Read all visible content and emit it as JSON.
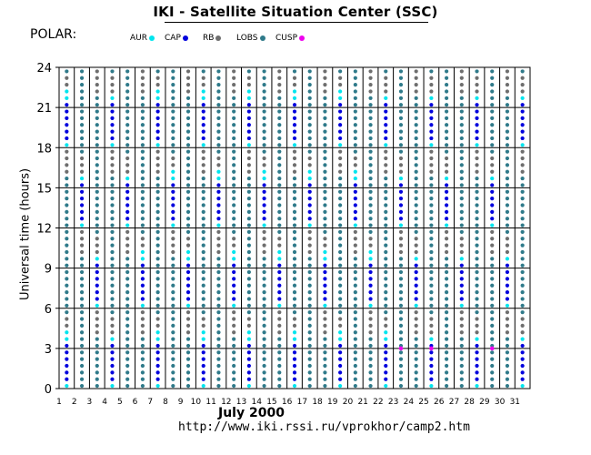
{
  "header": {
    "title": "IKI - Satellite Situation Center (SSC)",
    "satellite": "POLAR:",
    "url": "http://www.iki.rssi.ru/vprokhor/camp2.htm"
  },
  "colors": {
    "AUR": "#00e5ee",
    "CAP": "#0000dd",
    "RB": "#6e6e6e",
    "LOBS": "#2f7a8a",
    "CUSP": "#ee00ee"
  },
  "chart_data": {
    "type": "scatter",
    "xlabel": "July    2000",
    "ylabel": "Universal time  (hours)",
    "xlim": [
      1,
      31
    ],
    "ylim": [
      0,
      24
    ],
    "x_ticks": [
      "1",
      "2",
      "3",
      "4",
      "5",
      "6",
      "7",
      "8",
      "9",
      "10",
      "11",
      "12",
      "13",
      "14",
      "15",
      "16",
      "17",
      "18",
      "19",
      "20",
      "21",
      "22",
      "23",
      "24",
      "25",
      "26",
      "27",
      "28",
      "29",
      "30",
      "31"
    ],
    "y_ticks": [
      "0",
      "3",
      "6",
      "9",
      "12",
      "15",
      "18",
      "21",
      "24"
    ],
    "grid": true,
    "legend": [
      {
        "name": "AUR",
        "color": "#00e5ee"
      },
      {
        "name": "CAP",
        "color": "#0000dd"
      },
      {
        "name": "RB",
        "color": "#6e6e6e"
      },
      {
        "name": "LOBS",
        "color": "#2f7a8a"
      },
      {
        "name": "CUSP",
        "color": "#ee00ee"
      }
    ],
    "orbit_period_hours": 18,
    "orbit_phase_hours": 0,
    "orbit_region_sequence": [
      {
        "region": "AUR",
        "hours": 0.6
      },
      {
        "region": "CAP",
        "hours": 3.0
      },
      {
        "region": "AUR",
        "hours": 0.6
      },
      {
        "region": "RB",
        "hours": 1.2
      },
      {
        "region": "LOBS",
        "hours": 10.6
      },
      {
        "region": "RB",
        "hours": 2.0
      }
    ],
    "cusp_marks": [
      {
        "day": 23.5,
        "hour": 3.0
      },
      {
        "day": 25.5,
        "hour": 3.0
      },
      {
        "day": 29.5,
        "hour": 3.0
      }
    ]
  }
}
